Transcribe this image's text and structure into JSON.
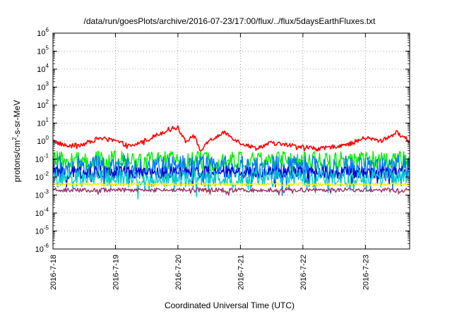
{
  "chart_data": {
    "type": "line",
    "title": "/data/run/goesPlots/archive/2016-07-23/17:00/flux/../flux/5daysEarthFluxes.txt",
    "xlabel": "Coordinated Universal Time (UTC)",
    "ylabel_parts": [
      "protons/cm",
      "2",
      "-s-sr-MeV"
    ],
    "y_scale": "log",
    "ylim": [
      1e-06,
      1000000.0
    ],
    "y_ticks": [
      {
        "value": 1e-06,
        "base": "10",
        "exp": "-6"
      },
      {
        "value": 1e-05,
        "base": "10",
        "exp": "-5"
      },
      {
        "value": 0.0001,
        "base": "10",
        "exp": "-4"
      },
      {
        "value": 0.001,
        "base": "10",
        "exp": "-3"
      },
      {
        "value": 0.01,
        "base": "10",
        "exp": "-2"
      },
      {
        "value": 0.1,
        "base": "10",
        "exp": "-1"
      },
      {
        "value": 1,
        "base": "10",
        "exp": "0"
      },
      {
        "value": 10,
        "base": "10",
        "exp": "1"
      },
      {
        "value": 100,
        "base": "10",
        "exp": "2"
      },
      {
        "value": 1000,
        "base": "10",
        "exp": "3"
      },
      {
        "value": 10000,
        "base": "10",
        "exp": "4"
      },
      {
        "value": 100000,
        "base": "10",
        "exp": "5"
      },
      {
        "value": 1000000,
        "base": "10",
        "exp": "6"
      }
    ],
    "xlim": [
      "2016-07-18T00:00",
      "2016-07-23T17:00"
    ],
    "x_ticks": [
      "2016-7-18",
      "2016-7-19",
      "2016-7-20",
      "2016-7-21",
      "2016-7-22",
      "2016-7-23"
    ],
    "grid": true,
    "grid_style": "dotted",
    "series": [
      {
        "color": "#ff0000",
        "level": 1.0,
        "noise": 0.12,
        "x": [
          "2016-07-18T00:00",
          "2016-07-18T06:00",
          "2016-07-18T12:00",
          "2016-07-18T18:00",
          "2016-07-19T00:00",
          "2016-07-19T06:00",
          "2016-07-19T12:00",
          "2016-07-19T18:00",
          "2016-07-19T21:00",
          "2016-07-20T00:00",
          "2016-07-20T03:00",
          "2016-07-20T06:00",
          "2016-07-20T09:00",
          "2016-07-20T12:00",
          "2016-07-20T18:00",
          "2016-07-21T00:00",
          "2016-07-21T06:00",
          "2016-07-21T12:00",
          "2016-07-21T18:00",
          "2016-07-22T00:00",
          "2016-07-22T06:00",
          "2016-07-22T12:00",
          "2016-07-22T18:00",
          "2016-07-23T00:00",
          "2016-07-23T06:00",
          "2016-07-23T12:00",
          "2016-07-23T17:00"
        ],
        "y": [
          1.0,
          0.5,
          0.7,
          1.5,
          1.0,
          0.5,
          1.2,
          3.0,
          5.0,
          5.5,
          1.0,
          2.0,
          0.3,
          1.0,
          3.0,
          0.8,
          0.4,
          0.8,
          0.6,
          0.5,
          0.35,
          0.5,
          0.7,
          1.5,
          1.0,
          3.0,
          1.0
        ]
      },
      {
        "color": "#00ee00",
        "level": 0.08,
        "noise": 0.55,
        "x": [],
        "y": []
      },
      {
        "color": "#0077ff",
        "level": 0.035,
        "noise": 0.65,
        "x": [],
        "y": []
      },
      {
        "color": "#0000cc",
        "level": 0.018,
        "noise": 0.35,
        "x": [],
        "y": []
      },
      {
        "color": "#00cccc",
        "level": 0.009,
        "noise": 0.5,
        "x": [],
        "y": []
      },
      {
        "color": "#ffee00",
        "level": 0.004,
        "noise": 0.08,
        "x": [],
        "y": []
      },
      {
        "color": "#993366",
        "level": 0.0019,
        "noise": 0.12,
        "x": [],
        "y": []
      }
    ]
  }
}
